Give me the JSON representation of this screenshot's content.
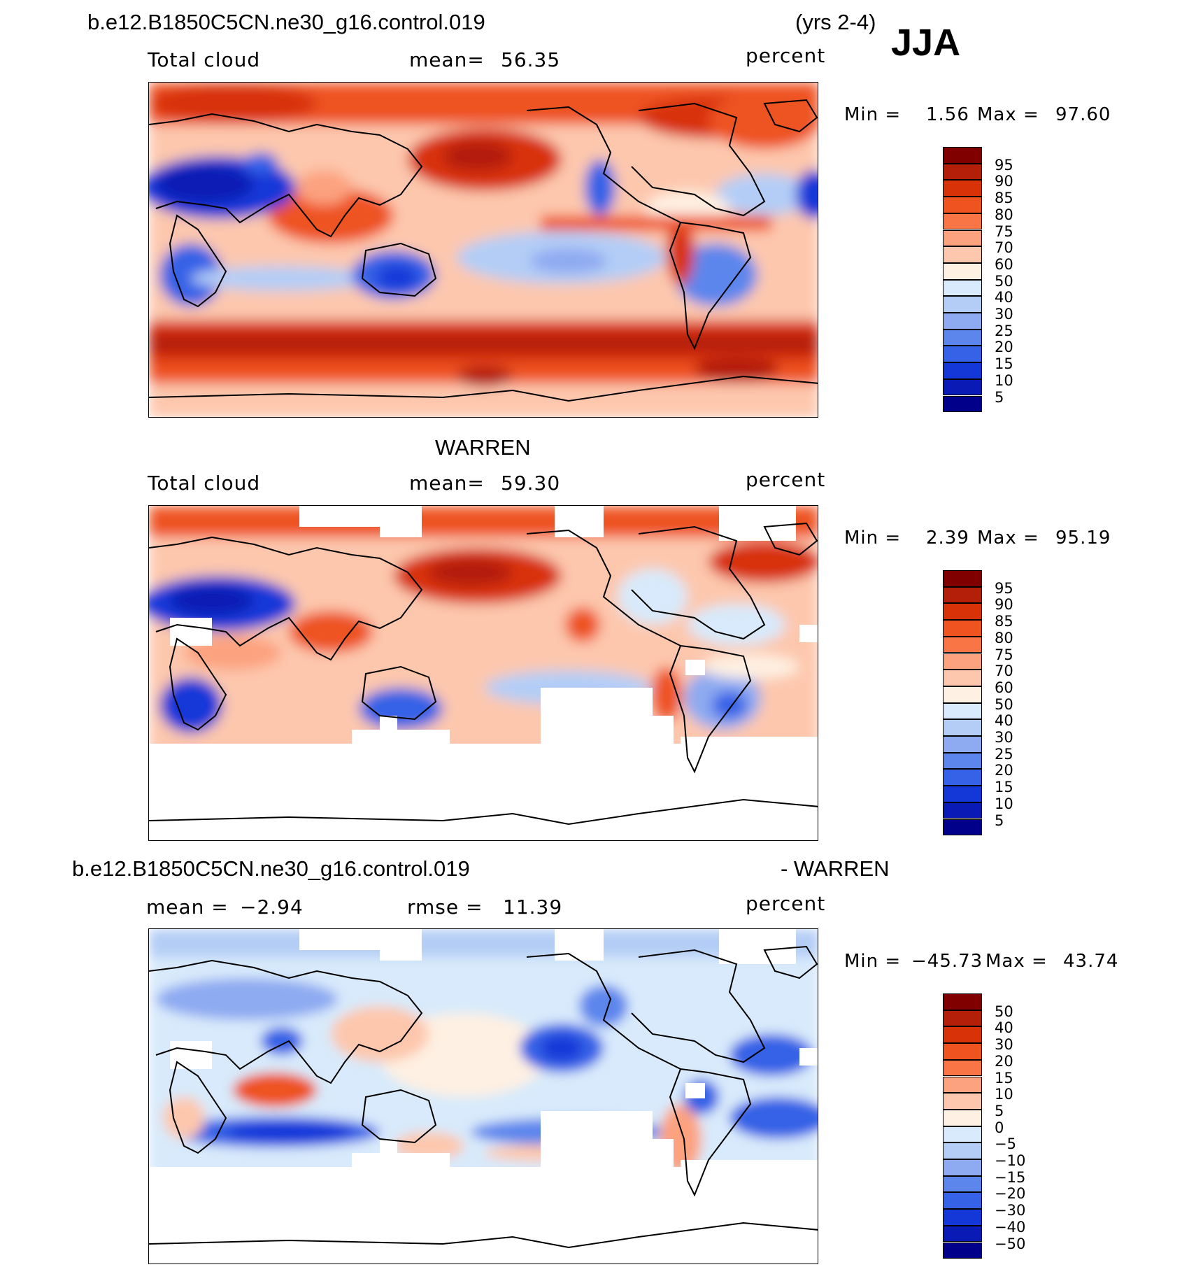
{
  "figure": {
    "case_title": "b.e12.B1850C5CN.ne30_g16.control.019",
    "years": "(yrs 2-4)",
    "season": "JJA"
  },
  "panels": [
    {
      "id": "model",
      "header": "",
      "left_label": "Total cloud",
      "mean_label": "mean=",
      "mean_value": "56.35",
      "units": "percent",
      "min_label": "Min =",
      "min_value": "1.56",
      "max_label": "Max =",
      "max_value": "97.60",
      "masked": false,
      "style": "model"
    },
    {
      "id": "obs",
      "header": "WARREN",
      "left_label": "Total cloud",
      "mean_label": "mean=",
      "mean_value": "59.30",
      "units": "percent",
      "min_label": "Min =",
      "min_value": "2.39",
      "max_label": "Max =",
      "max_value": "95.19",
      "masked": true,
      "style": "obs"
    },
    {
      "id": "diff",
      "header_left": "b.e12.B1850C5CN.ne30_g16.control.019",
      "header_right": "- WARREN",
      "left_label": "mean =",
      "left_value": "−2.94",
      "mid_label": "rmse =",
      "mid_value": "11.39",
      "units": "percent",
      "min_label": "Min =",
      "min_value": "−45.73",
      "max_label": "Max =",
      "max_value": "43.74",
      "masked": true,
      "style": "diff"
    }
  ],
  "colorbars": {
    "field_levels": [
      "95",
      "90",
      "85",
      "80",
      "75",
      "70",
      "60",
      "50",
      "40",
      "30",
      "25",
      "20",
      "15",
      "10",
      "5"
    ],
    "diff_levels": [
      "50",
      "40",
      "30",
      "20",
      "15",
      "10",
      "5",
      "0",
      "−5",
      "−10",
      "−15",
      "−20",
      "−30",
      "−40",
      "−50"
    ],
    "colors": [
      "#800000",
      "#b41f0a",
      "#d83209",
      "#ee5320",
      "#f97545",
      "#fca27f",
      "#fdc7ad",
      "#fef0e2",
      "#d8eafb",
      "#b4cdf6",
      "#8eaaf1",
      "#5d86ec",
      "#3562e6",
      "#1438d8",
      "#0a1ab4",
      "#00008a"
    ]
  }
}
